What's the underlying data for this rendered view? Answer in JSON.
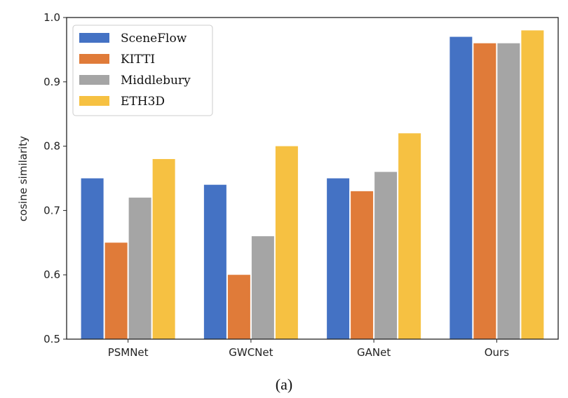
{
  "chart_data": {
    "type": "bar",
    "title": "",
    "xlabel": "",
    "ylabel": "cosine similarity",
    "caption": "(a)",
    "ylim": [
      0.5,
      1.0
    ],
    "yticks": [
      "0.5",
      "0.6",
      "0.7",
      "0.8",
      "0.9",
      "1.0"
    ],
    "categories": [
      "PSMNet",
      "GWCNet",
      "GANet",
      "Ours"
    ],
    "grid": false,
    "legend_position": "top-left",
    "series": [
      {
        "name": "SceneFlow",
        "color": "#4472c4",
        "values": [
          0.75,
          0.74,
          0.75,
          0.97
        ]
      },
      {
        "name": "KITTI",
        "color": "#e07b39",
        "values": [
          0.65,
          0.6,
          0.73,
          0.96
        ]
      },
      {
        "name": "Middlebury",
        "color": "#a5a5a5",
        "values": [
          0.72,
          0.66,
          0.76,
          0.96
        ]
      },
      {
        "name": "ETH3D",
        "color": "#f6c142",
        "values": [
          0.78,
          0.8,
          0.82,
          0.98
        ]
      }
    ]
  }
}
